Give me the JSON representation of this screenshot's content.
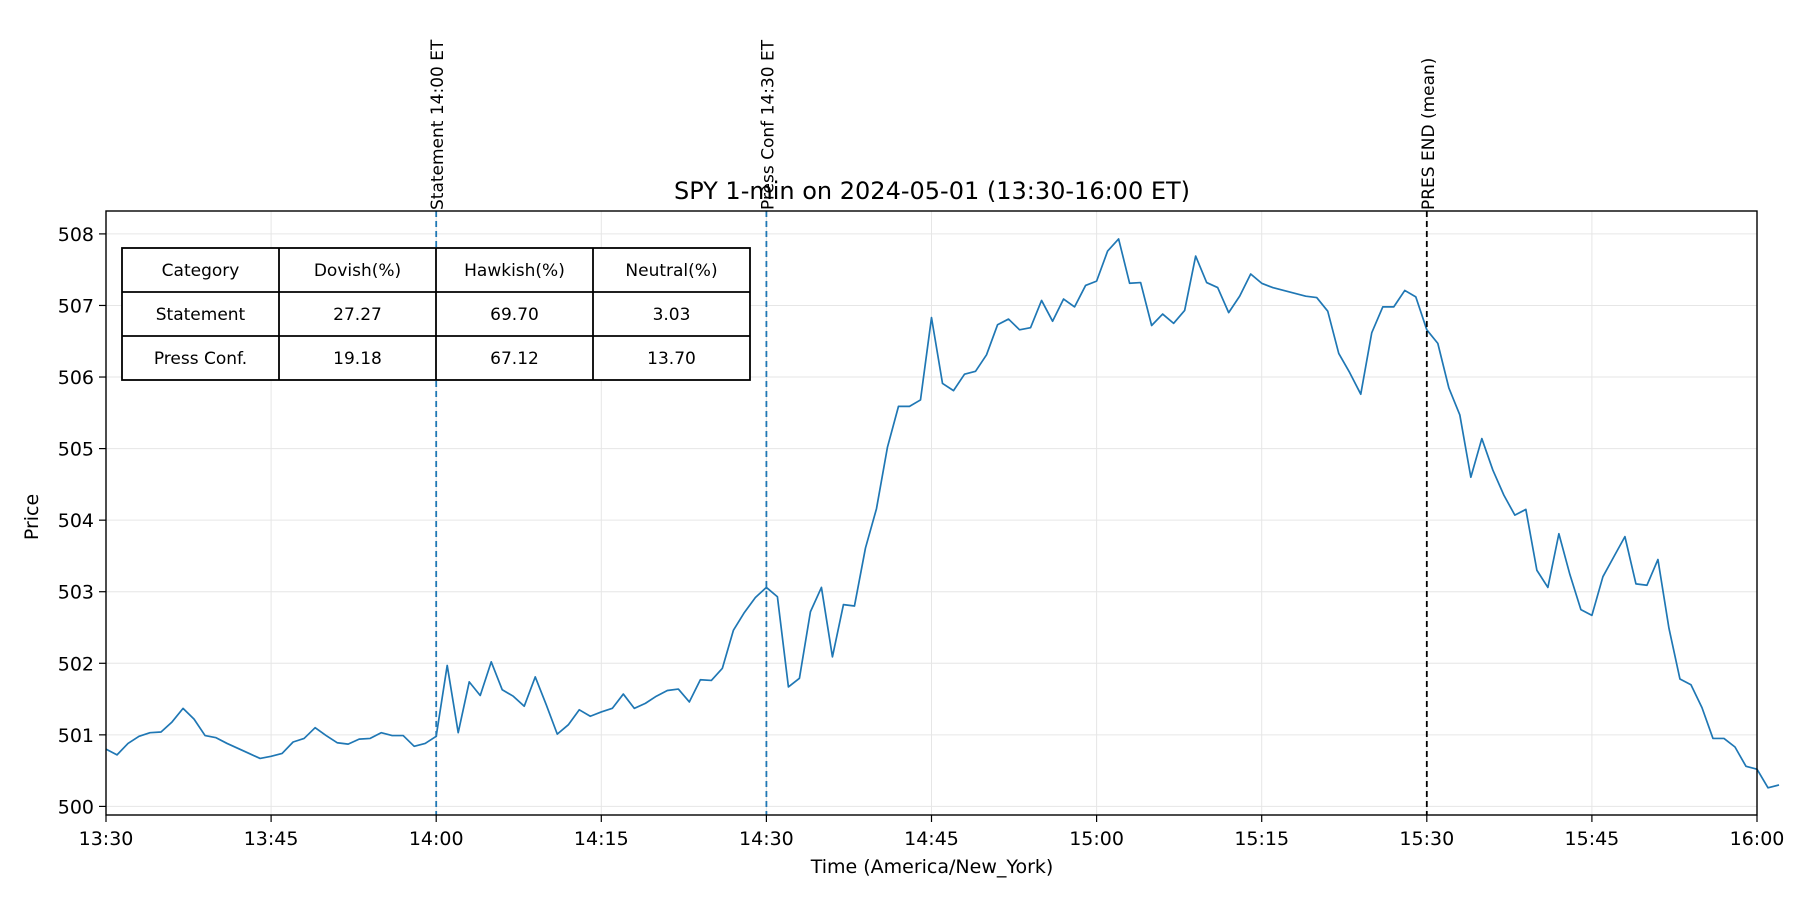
{
  "chart_data": {
    "type": "line",
    "title": "SPY 1-min on 2024-05-01 (13:30-16:00 ET)",
    "xlabel": "Time (America/New_York)",
    "ylabel": "Price",
    "xlim": [
      "13:30",
      "16:00"
    ],
    "ylim": [
      499.88,
      508.32
    ],
    "x_ticks": [
      "13:30",
      "13:45",
      "14:00",
      "14:15",
      "14:30",
      "14:45",
      "15:00",
      "15:15",
      "15:30",
      "15:45",
      "16:00"
    ],
    "y_ticks": [
      500,
      501,
      502,
      503,
      504,
      505,
      506,
      507,
      508
    ],
    "grid": true,
    "line_color": "#1f77b4",
    "series": [
      {
        "x_start": "13:30",
        "x_step_minutes": 1,
        "values": [
          500.8,
          500.72,
          500.88,
          500.98,
          501.03,
          501.04,
          501.18,
          501.37,
          501.22,
          500.99,
          500.96,
          500.88,
          500.81,
          500.74,
          500.67,
          500.7,
          500.74,
          500.9,
          500.95,
          501.1,
          500.99,
          500.89,
          500.87,
          500.94,
          500.95,
          501.03,
          500.99,
          500.99,
          500.84,
          500.88,
          500.98,
          501.97,
          501.03,
          501.74,
          501.55,
          502.02,
          501.63,
          501.54,
          501.4,
          501.81,
          501.42,
          501.01,
          501.14,
          501.35,
          501.26,
          501.32,
          501.37,
          501.57,
          501.37,
          501.44,
          501.54,
          501.62,
          501.64,
          501.46,
          501.77,
          501.76,
          501.93,
          502.46,
          502.71,
          502.92,
          503.06,
          502.93,
          501.67,
          501.79,
          502.72,
          503.06,
          502.09,
          502.82,
          502.8,
          503.61,
          504.16,
          505.02,
          505.59,
          505.59,
          505.68,
          506.83,
          505.91,
          505.81,
          506.04,
          506.08,
          506.31,
          506.73,
          506.81,
          506.66,
          506.69,
          507.07,
          506.78,
          507.09,
          506.98,
          507.28,
          507.34,
          507.76,
          507.93,
          507.31,
          507.32,
          506.72,
          506.88,
          506.75,
          506.93,
          507.69,
          507.32,
          507.25,
          506.9,
          507.13,
          507.44,
          507.31,
          507.25,
          507.21,
          507.17,
          507.13,
          507.11,
          506.92,
          506.33,
          506.06,
          505.76,
          506.62,
          506.98,
          506.98,
          507.21,
          507.12,
          506.66,
          506.47,
          505.85,
          505.47,
          504.6,
          505.14,
          504.7,
          504.35,
          504.07,
          504.15,
          503.3,
          503.06,
          503.81,
          503.24,
          502.75,
          502.67,
          503.21,
          503.49,
          503.77,
          503.11,
          503.09,
          503.45,
          502.49,
          501.78,
          501.7,
          501.38,
          500.95,
          500.95,
          500.83,
          500.56,
          500.52,
          500.26,
          500.3
        ]
      }
    ],
    "vlines": [
      {
        "x": "14:00",
        "label": "Statement 14:00 ET",
        "color": "#1f77b4",
        "style": "dashed"
      },
      {
        "x": "14:30",
        "label": "Press Conf 14:30 ET",
        "color": "#1f77b4",
        "style": "dashed"
      },
      {
        "x": "15:30",
        "label": "PRES END (mean)",
        "color": "#000000",
        "style": "dashed"
      }
    ],
    "table": {
      "headers": [
        "Category",
        "Dovish(%)",
        "Hawkish(%)",
        "Neutral(%)"
      ],
      "rows": [
        [
          "Statement",
          "27.27",
          "69.70",
          "3.03"
        ],
        [
          "Press Conf.",
          "19.18",
          "67.12",
          "13.70"
        ]
      ]
    }
  }
}
